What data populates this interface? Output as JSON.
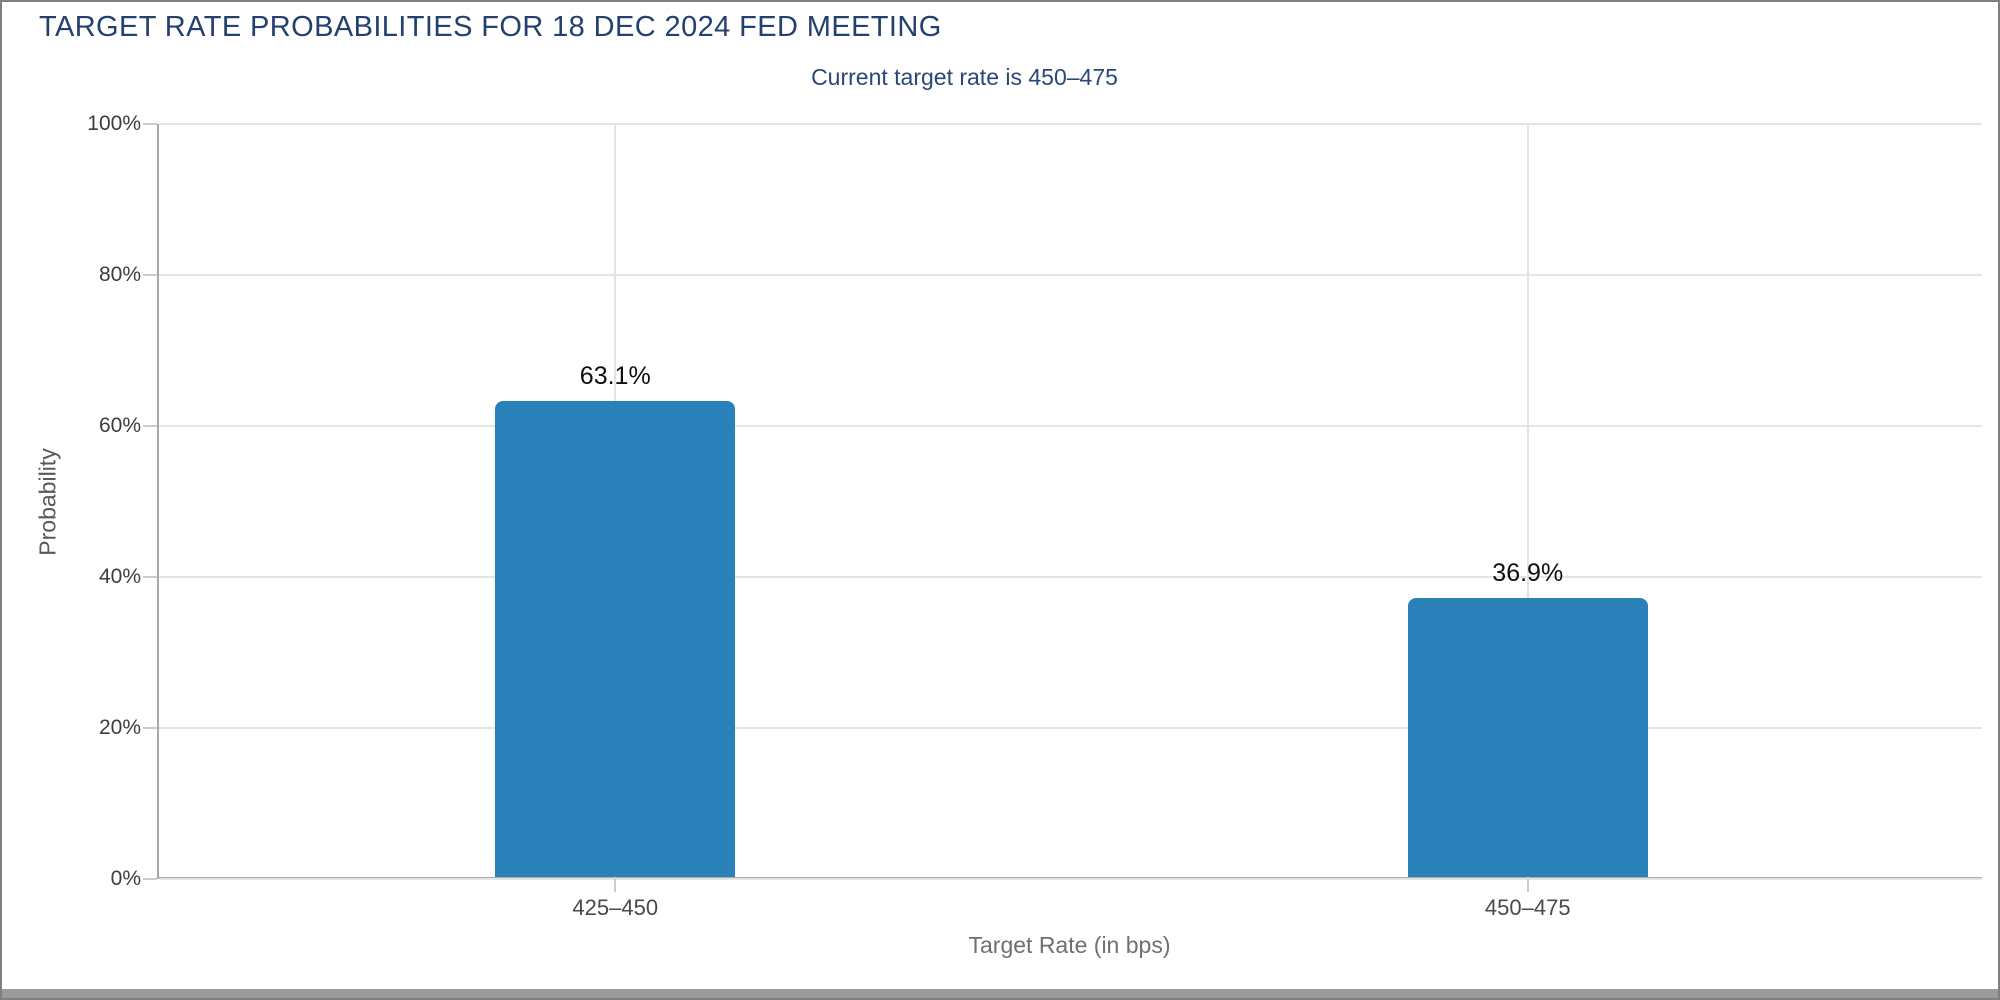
{
  "header": {
    "title": "TARGET RATE PROBABILITIES FOR 18 DEC 2024 FED MEETING",
    "subtitle": "Current target rate is 450–475"
  },
  "chart_data": {
    "type": "bar",
    "title": "TARGET RATE PROBABILITIES FOR 18 DEC 2024 FED MEETING",
    "subtitle": "Current target rate is 450–475",
    "categories": [
      "425–450",
      "450–475"
    ],
    "values": [
      63.1,
      36.9
    ],
    "value_labels": [
      "63.1%",
      "36.9%"
    ],
    "xlabel": "Target Rate (in bps)",
    "ylabel": "Probability",
    "ylim": [
      0,
      100
    ],
    "yticks": [
      0,
      20,
      40,
      60,
      80,
      100
    ],
    "ytick_labels": [
      "0%",
      "20%",
      "40%",
      "60%",
      "80%",
      "100%"
    ],
    "grid": true,
    "legend": "none",
    "bar_color": "#2a80b9"
  },
  "colors": {
    "title_navy": "#24406e",
    "subtitle_navy": "#2a4777",
    "bar_blue": "#2a80b9",
    "gridline": "#e4e4e4",
    "axis_line": "#a9a9a9",
    "tick_mark": "#cccccc",
    "value_label": "#0e0e0e",
    "axis_label_gray": "#595959",
    "window_border": "#7f7f7f",
    "scrollbar_gray": "#9a9a9a"
  }
}
